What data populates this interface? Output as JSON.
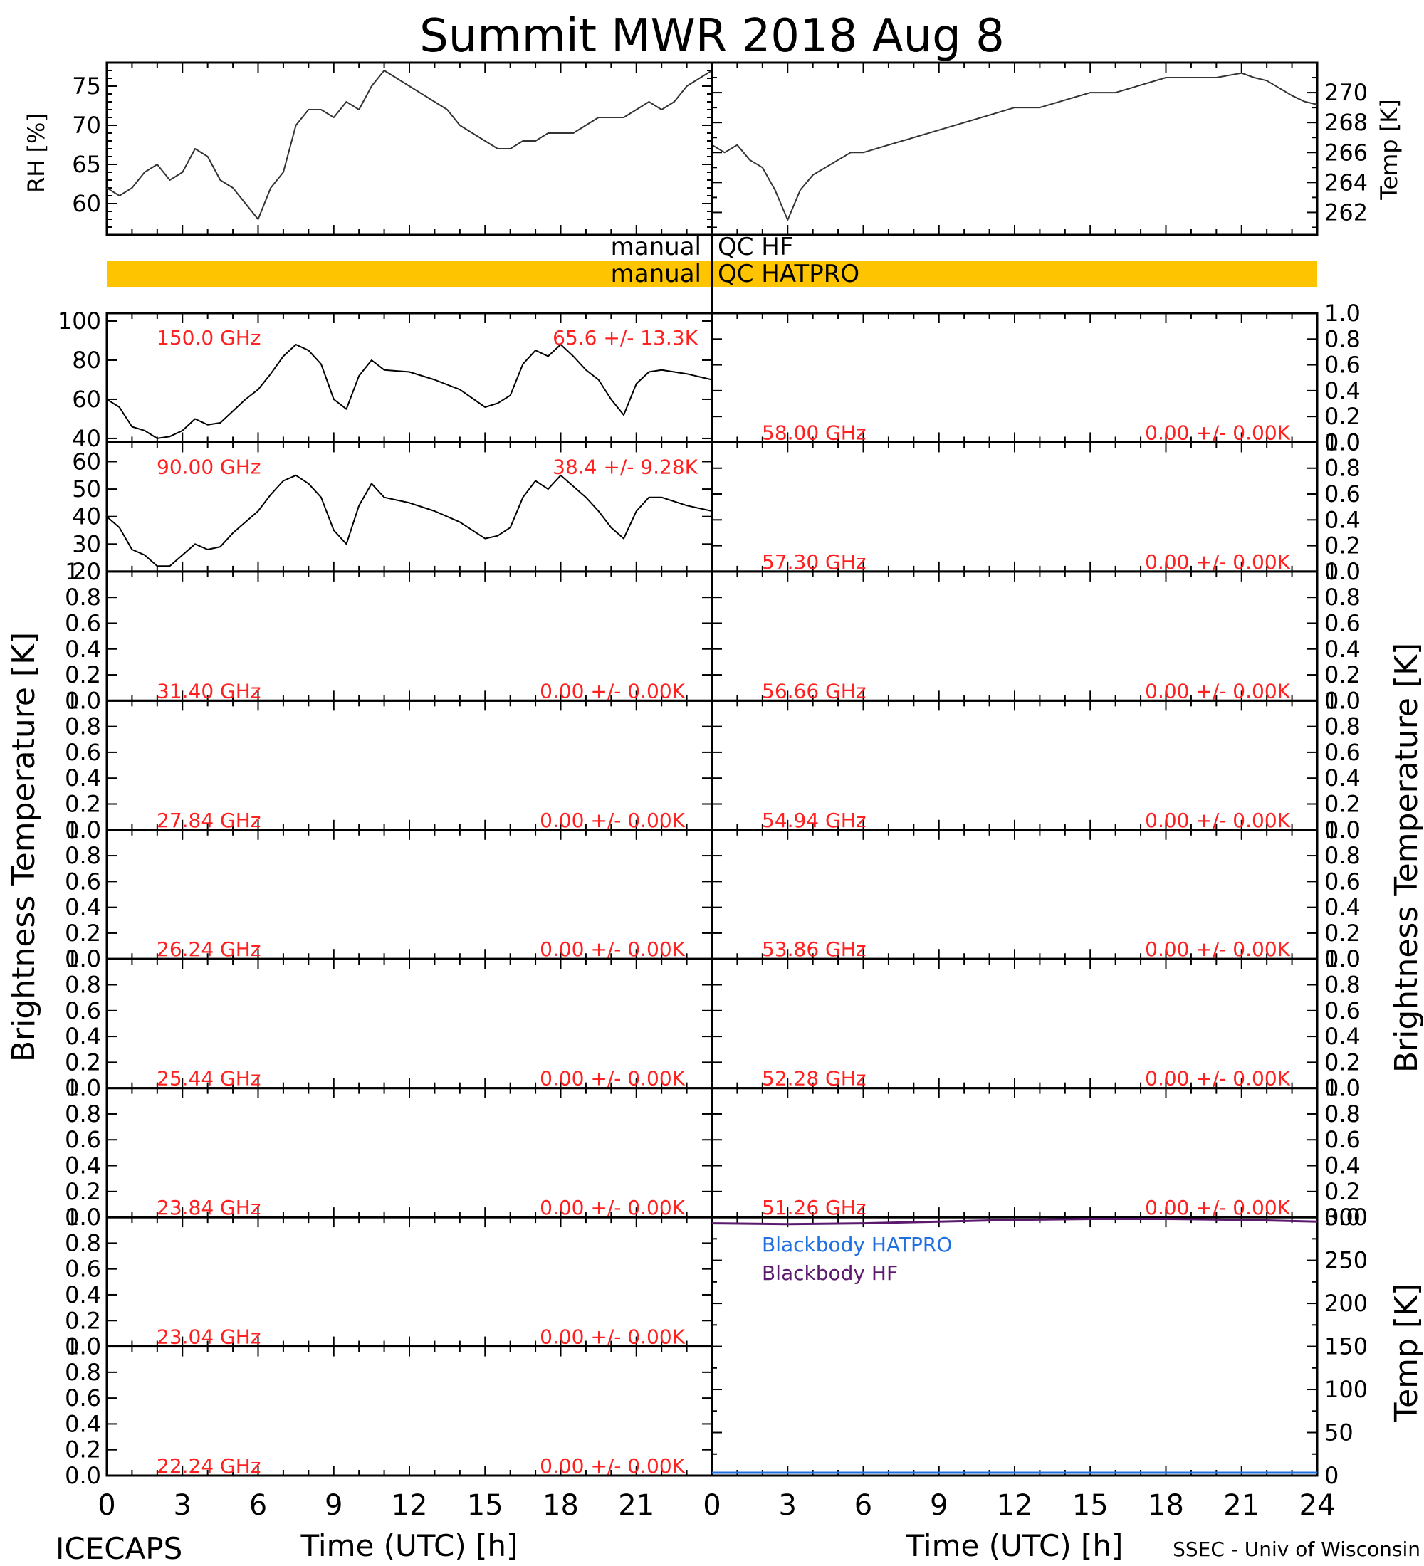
{
  "title": "Summit MWR 2018 Aug  8",
  "footer": {
    "left": "ICECAPS",
    "right": "SSEC - Univ of Wisconsin",
    "xlabel": "Time (UTC) [h]"
  },
  "colors": {
    "axis": "#000000",
    "trace": "#000000",
    "label_red": "#ff2020",
    "qc_bar": "#ffc400",
    "bb_hatpro": "#1f6fe0",
    "bb_hf": "#5c1a6e"
  },
  "qc": {
    "hf_label_left": "manual",
    "hf_label_right": "QC HF",
    "hatpro_label_left": "manual",
    "hatpro_label_right": "QC HATPRO"
  },
  "side_labels": {
    "left": "Brightness Temperature [K]",
    "right": "Brightness Temperature [K]",
    "bb_right": "Temp [K]"
  },
  "chart_data": [
    {
      "id": "rh",
      "type": "line",
      "ylabel": "RH [%]",
      "xlim": [
        0,
        24
      ],
      "ylim": [
        56,
        78
      ],
      "yticks": [
        60,
        65,
        70,
        75
      ],
      "x": [
        0,
        0.5,
        1,
        1.5,
        2,
        2.5,
        3,
        3.5,
        4,
        4.5,
        5,
        5.5,
        6,
        6.5,
        7,
        7.5,
        8,
        8.5,
        9,
        9.5,
        10,
        10.5,
        11,
        11.5,
        12,
        12.5,
        13,
        13.5,
        14,
        14.5,
        15,
        15.5,
        16,
        16.5,
        17,
        17.5,
        18,
        18.5,
        19,
        19.5,
        20,
        20.5,
        21,
        21.5,
        22,
        22.5,
        23,
        23.5,
        24
      ],
      "y": [
        62,
        61,
        62,
        64,
        65,
        63,
        64,
        67,
        66,
        63,
        62,
        60,
        58,
        62,
        64,
        70,
        72,
        72,
        71,
        73,
        72,
        75,
        77,
        76,
        75,
        74,
        73,
        72,
        70,
        69,
        68,
        67,
        67,
        68,
        68,
        69,
        69,
        69,
        70,
        71,
        71,
        71,
        72,
        73,
        72,
        73,
        75,
        76,
        77
      ]
    },
    {
      "id": "temp",
      "type": "line",
      "ylabel": "Temp [K]",
      "xlim": [
        0,
        24
      ],
      "ylim": [
        260.5,
        272
      ],
      "yticks": [
        262,
        264,
        266,
        268,
        270
      ],
      "x": [
        0,
        0.5,
        1,
        1.5,
        2,
        2.5,
        3,
        3.5,
        4,
        4.5,
        5,
        5.5,
        6,
        7,
        8,
        9,
        10,
        11,
        12,
        13,
        14,
        15,
        16,
        17,
        18,
        19,
        20,
        21,
        21.5,
        22,
        22.5,
        23,
        23.5,
        24
      ],
      "y": [
        266.5,
        266,
        266.5,
        265.5,
        265,
        263.5,
        261.5,
        263.5,
        264.5,
        265,
        265.5,
        266,
        266,
        266.5,
        267,
        267.5,
        268,
        268.5,
        269,
        269,
        269.5,
        270,
        270,
        270.5,
        271,
        271,
        271,
        271.3,
        271,
        270.8,
        270.3,
        269.8,
        269.4,
        269.2
      ]
    },
    {
      "id": "tb_150",
      "type": "line",
      "label": "150.0 GHz",
      "stats": "65.6 +/-  13.3K",
      "xlim": [
        0,
        24
      ],
      "ylim": [
        38,
        104
      ],
      "yticks": [
        40,
        60,
        80,
        100
      ],
      "x": [
        0,
        0.5,
        1,
        1.5,
        2,
        2.5,
        3,
        3.5,
        4,
        4.5,
        5,
        5.5,
        6,
        6.5,
        7,
        7.5,
        8,
        8.5,
        9,
        9.5,
        10,
        10.5,
        11,
        12,
        13,
        14,
        15,
        15.5,
        16,
        16.5,
        17,
        17.5,
        18,
        18.5,
        19,
        19.5,
        20,
        20.5,
        21,
        21.5,
        22,
        23,
        24
      ],
      "y": [
        60,
        56,
        46,
        44,
        40,
        41,
        44,
        50,
        47,
        48,
        54,
        60,
        65,
        73,
        82,
        88,
        85,
        78,
        60,
        55,
        72,
        80,
        75,
        74,
        70,
        65,
        56,
        58,
        62,
        78,
        85,
        82,
        88,
        82,
        75,
        70,
        60,
        52,
        68,
        74,
        75,
        73,
        70
      ]
    },
    {
      "id": "tb_90",
      "type": "line",
      "label": "90.00 GHz",
      "stats": "38.4 +/-   9.28K",
      "xlim": [
        0,
        24
      ],
      "ylim": [
        20,
        67
      ],
      "yticks": [
        20,
        30,
        40,
        50,
        60
      ],
      "x": [
        0,
        0.5,
        1,
        1.5,
        2,
        2.5,
        3,
        3.5,
        4,
        4.5,
        5,
        5.5,
        6,
        6.5,
        7,
        7.5,
        8,
        8.5,
        9,
        9.5,
        10,
        10.5,
        11,
        12,
        13,
        14,
        15,
        15.5,
        16,
        16.5,
        17,
        17.5,
        18,
        18.5,
        19,
        19.5,
        20,
        20.5,
        21,
        21.5,
        22,
        23,
        24
      ],
      "y": [
        40,
        36,
        28,
        26,
        22,
        22,
        26,
        30,
        28,
        29,
        34,
        38,
        42,
        48,
        53,
        55,
        52,
        47,
        35,
        30,
        44,
        52,
        47,
        45,
        42,
        38,
        32,
        33,
        36,
        47,
        53,
        50,
        55,
        51,
        47,
        42,
        36,
        32,
        42,
        47,
        47,
        44,
        42
      ]
    }
  ],
  "empty_panels": {
    "left": [
      {
        "label": "31.40 GHz",
        "stats": "0.00 +/-  0.00K"
      },
      {
        "label": "27.84 GHz",
        "stats": "0.00 +/-  0.00K"
      },
      {
        "label": "26.24 GHz",
        "stats": "0.00 +/-  0.00K"
      },
      {
        "label": "25.44 GHz",
        "stats": "0.00 +/-  0.00K"
      },
      {
        "label": "23.84 GHz",
        "stats": "0.00 +/-  0.00K"
      },
      {
        "label": "23.04 GHz",
        "stats": "0.00 +/-  0.00K"
      },
      {
        "label": "22.24 GHz",
        "stats": "0.00 +/-  0.00K"
      }
    ],
    "right": [
      {
        "label": "58.00 GHz",
        "stats": "0.00 +/-  0.00K"
      },
      {
        "label": "57.30 GHz",
        "stats": "0.00 +/-  0.00K"
      },
      {
        "label": "56.66 GHz",
        "stats": "0.00 +/-  0.00K"
      },
      {
        "label": "54.94 GHz",
        "stats": "0.00 +/-  0.00K"
      },
      {
        "label": "53.86 GHz",
        "stats": "0.00 +/-  0.00K"
      },
      {
        "label": "52.28 GHz",
        "stats": "0.00 +/-  0.00K"
      },
      {
        "label": "51.26 GHz",
        "stats": "0.00 +/-  0.00K"
      }
    ],
    "yticks": [
      "0.0",
      "0.2",
      "0.4",
      "0.6",
      "0.8",
      "1.0"
    ]
  },
  "blackbody": {
    "ylim": [
      0,
      300
    ],
    "yticks": [
      0,
      50,
      100,
      150,
      200,
      250,
      300
    ],
    "legend": [
      "Blackbody HATPRO",
      "Blackbody HF"
    ],
    "x": [
      0,
      3,
      6,
      9,
      12,
      15,
      18,
      21,
      24
    ],
    "hf_y": [
      293,
      292,
      293,
      295,
      297,
      298,
      298,
      297,
      295
    ],
    "hatpro_y": [
      0,
      0,
      0,
      0,
      0,
      0,
      0,
      0,
      0
    ]
  },
  "xticks": [
    "0",
    "3",
    "6",
    "9",
    "12",
    "15",
    "18",
    "21"
  ],
  "xticks_right": [
    "0",
    "3",
    "6",
    "9",
    "12",
    "15",
    "18",
    "21",
    "24"
  ]
}
